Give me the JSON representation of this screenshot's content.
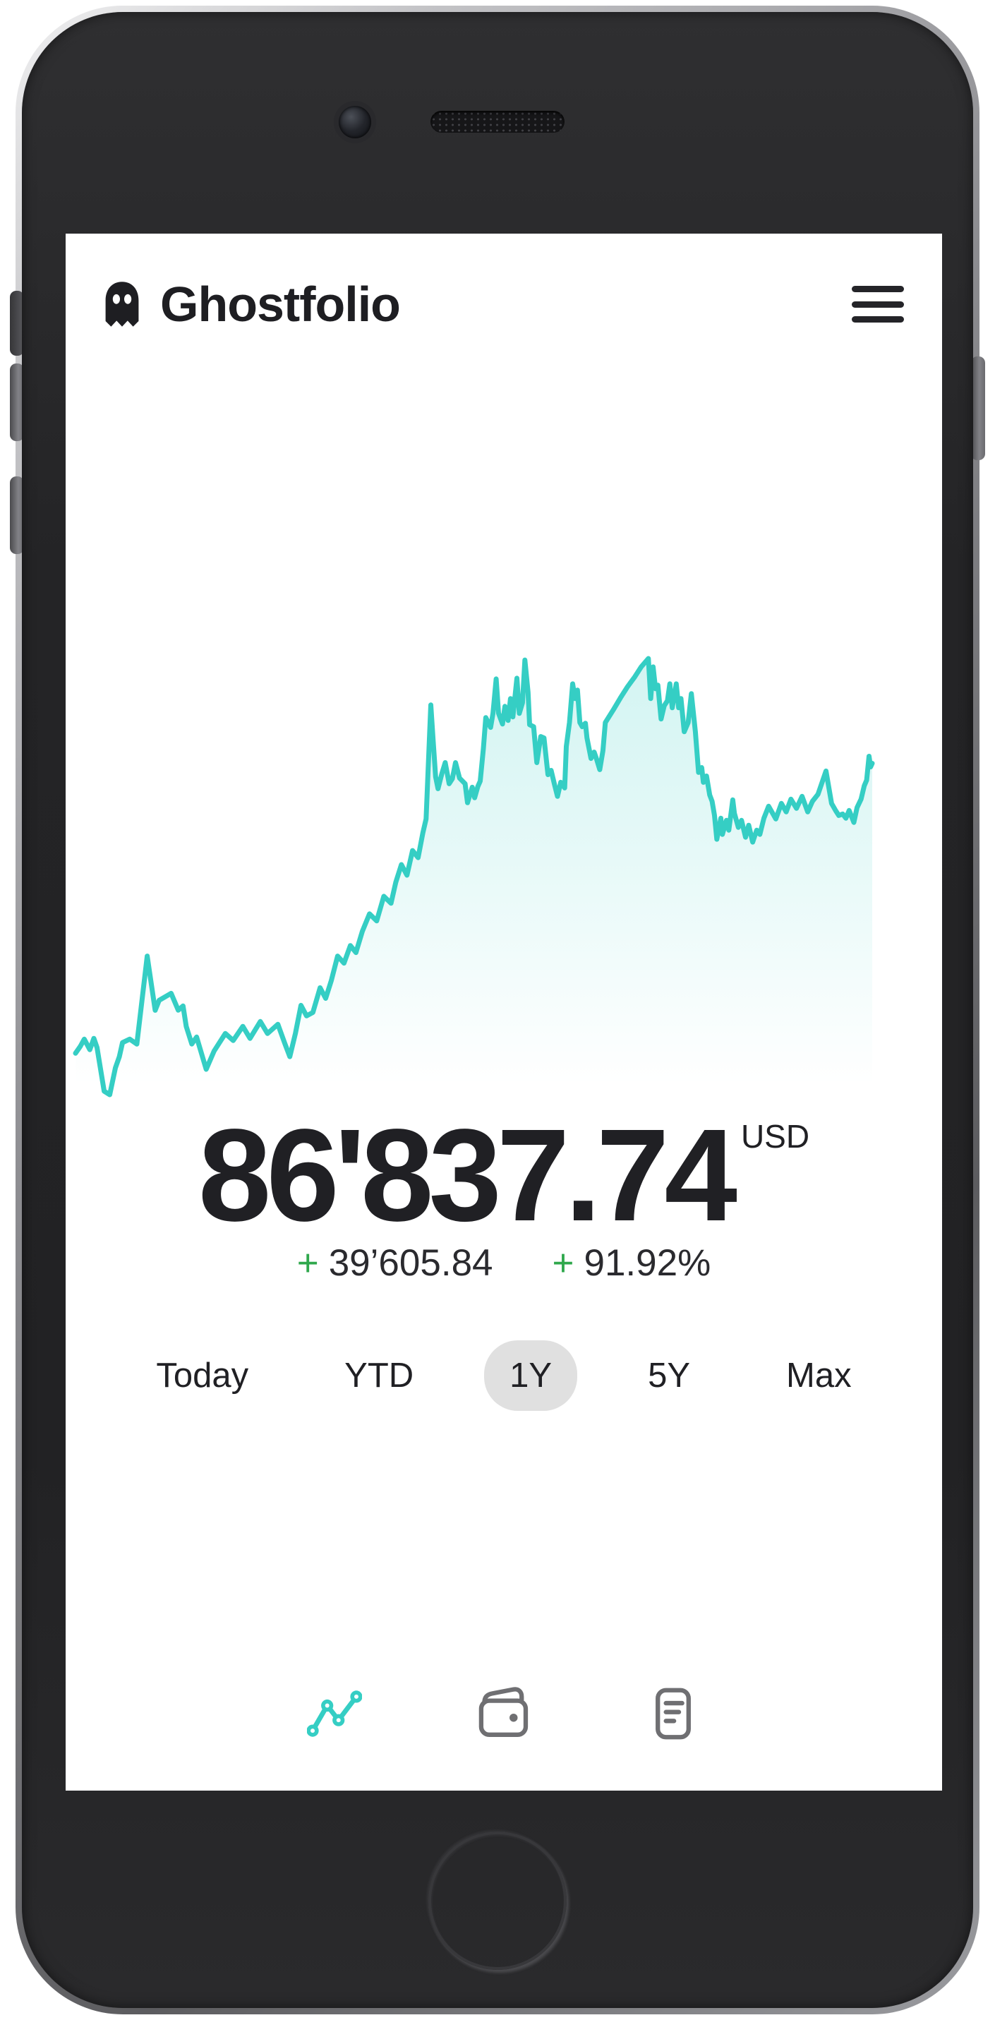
{
  "header": {
    "title": "Ghostfolio",
    "logo_icon": "ghost-icon",
    "menu_icon": "hamburger-icon"
  },
  "portfolio": {
    "value": "86'837.74",
    "currency": "USD",
    "change_sign": "+",
    "change_absolute": "39’605.84",
    "change_percent": "91.92%"
  },
  "tabs": {
    "items": [
      {
        "label": "Today",
        "active": false
      },
      {
        "label": "YTD",
        "active": false
      },
      {
        "label": "1Y",
        "active": true
      },
      {
        "label": "5Y",
        "active": false
      },
      {
        "label": "Max",
        "active": false
      }
    ]
  },
  "bottom_nav": {
    "items": [
      {
        "name": "performance",
        "icon": "line-chart-icon",
        "active": true
      },
      {
        "name": "holdings",
        "icon": "wallet-icon",
        "active": false
      },
      {
        "name": "transactions",
        "icon": "document-list-icon",
        "active": false
      }
    ]
  },
  "colors": {
    "accent_teal": "#35cec4",
    "positive_green": "#2fa84c",
    "text_dark": "#202024",
    "pill_gray": "#e0e0e0",
    "inactive_icon_gray": "#6f6f72"
  },
  "chart_data": {
    "type": "area",
    "title": "",
    "xlabel": "",
    "ylabel": "",
    "period_selected": "1Y",
    "axes_hidden": true,
    "grid": false,
    "legend": "none",
    "line_color": "#35cec4",
    "fill_style": "teal gradient fading to white at bottom",
    "x_unit": "percent of 1Y period",
    "y_unit": "USD",
    "ylim": [
      43000,
      101000
    ],
    "end_value": 86837.74,
    "series": [
      {
        "name": "Portfolio value (USD)",
        "points": [
          [
            0,
            48800
          ],
          [
            0.6,
            49700
          ],
          [
            1.1,
            50650
          ],
          [
            1.8,
            49270
          ],
          [
            2.3,
            50750
          ],
          [
            2.7,
            49550
          ],
          [
            3.6,
            43825
          ],
          [
            4.3,
            43360
          ],
          [
            5,
            46870
          ],
          [
            5.5,
            48345
          ],
          [
            5.9,
            50190
          ],
          [
            6.8,
            50650
          ],
          [
            7.7,
            50000
          ],
          [
            9,
            61550
          ],
          [
            10,
            54440
          ],
          [
            10.5,
            55740
          ],
          [
            12,
            56660
          ],
          [
            12.9,
            54450
          ],
          [
            13.5,
            55000
          ],
          [
            13.9,
            52320
          ],
          [
            14.6,
            50010
          ],
          [
            15.2,
            50930
          ],
          [
            16.4,
            46690
          ],
          [
            17.4,
            49090
          ],
          [
            18.8,
            51390
          ],
          [
            19.8,
            50470
          ],
          [
            21,
            52320
          ],
          [
            21.9,
            50750
          ],
          [
            23.2,
            52960
          ],
          [
            24.1,
            51390
          ],
          [
            25.4,
            52590
          ],
          [
            26.3,
            50010
          ],
          [
            26.9,
            48350
          ],
          [
            27.6,
            51390
          ],
          [
            28.3,
            55080
          ],
          [
            29,
            53700
          ],
          [
            29.8,
            54160
          ],
          [
            30.7,
            57390
          ],
          [
            31.4,
            56000
          ],
          [
            32.1,
            58310
          ],
          [
            32.9,
            61550
          ],
          [
            33.7,
            60620
          ],
          [
            34.5,
            62930
          ],
          [
            35.2,
            62010
          ],
          [
            36,
            64780
          ],
          [
            36.9,
            67090
          ],
          [
            37.8,
            66160
          ],
          [
            38.7,
            69390
          ],
          [
            39.6,
            68470
          ],
          [
            40.2,
            71240
          ],
          [
            40.9,
            73545
          ],
          [
            41.6,
            72160
          ],
          [
            42.3,
            75390
          ],
          [
            43,
            74470
          ],
          [
            43.6,
            77700
          ],
          [
            44,
            79545
          ],
          [
            44.6,
            94500
          ],
          [
            44.9,
            89700
          ],
          [
            45.2,
            85080
          ],
          [
            45.5,
            83515
          ],
          [
            46,
            85545
          ],
          [
            46.4,
            86930
          ],
          [
            46.9,
            84160
          ],
          [
            47.3,
            84810
          ],
          [
            47.7,
            86930
          ],
          [
            48.2,
            84900
          ],
          [
            48.9,
            84160
          ],
          [
            49.2,
            81670
          ],
          [
            49.8,
            83700
          ],
          [
            50.1,
            82320
          ],
          [
            50.5,
            83790
          ],
          [
            50.8,
            84500
          ],
          [
            51.2,
            88780
          ],
          [
            51.5,
            92840
          ],
          [
            52.1,
            91550
          ],
          [
            52.4,
            93390
          ],
          [
            52.8,
            97915
          ],
          [
            53.1,
            93390
          ],
          [
            53.6,
            92000
          ],
          [
            53.9,
            94315
          ],
          [
            54.3,
            92470
          ],
          [
            54.6,
            95330
          ],
          [
            54.9,
            92930
          ],
          [
            55.4,
            98010
          ],
          [
            55.7,
            93390
          ],
          [
            56.1,
            94775
          ],
          [
            56.4,
            100400
          ],
          [
            56.8,
            96160
          ],
          [
            57,
            91915
          ],
          [
            57.5,
            91640
          ],
          [
            57.9,
            86930
          ],
          [
            58.4,
            90345
          ],
          [
            58.8,
            90160
          ],
          [
            59.3,
            85360
          ],
          [
            59.7,
            85915
          ],
          [
            60.1,
            84160
          ],
          [
            60.5,
            82500
          ],
          [
            60.9,
            84345
          ],
          [
            61.4,
            83605
          ],
          [
            61.6,
            89055
          ],
          [
            62,
            92190
          ],
          [
            62.4,
            97270
          ],
          [
            62.7,
            95330
          ],
          [
            63,
            96440
          ],
          [
            63.3,
            92190
          ],
          [
            63.6,
            91640
          ],
          [
            64,
            92100
          ],
          [
            64.2,
            90160
          ],
          [
            64.7,
            87480
          ],
          [
            65.1,
            88315
          ],
          [
            65.4,
            87390
          ],
          [
            65.8,
            86010
          ],
          [
            66.2,
            88500
          ],
          [
            66.5,
            92190
          ],
          [
            67.5,
            93850
          ],
          [
            68.4,
            95420
          ],
          [
            69.3,
            96900
          ],
          [
            70.2,
            98190
          ],
          [
            71,
            99485
          ],
          [
            71.9,
            100590
          ],
          [
            72.2,
            95330
          ],
          [
            72.5,
            99485
          ],
          [
            72.8,
            96625
          ],
          [
            73.1,
            97085
          ],
          [
            73.5,
            92655
          ],
          [
            73.9,
            94405
          ],
          [
            74.3,
            95055
          ],
          [
            74.6,
            97270
          ],
          [
            74.9,
            94130
          ],
          [
            75.4,
            97270
          ],
          [
            75.7,
            94130
          ],
          [
            76,
            95330
          ],
          [
            76.4,
            90990
          ],
          [
            76.9,
            92190
          ],
          [
            77.3,
            95975
          ],
          [
            77.8,
            90990
          ],
          [
            78.2,
            85640
          ],
          [
            78.6,
            86285
          ],
          [
            78.8,
            84345
          ],
          [
            79.2,
            85175
          ],
          [
            79.6,
            82685
          ],
          [
            79.9,
            81855
          ],
          [
            80.2,
            80005
          ],
          [
            80.5,
            76870
          ],
          [
            81,
            79635
          ],
          [
            81.2,
            77515
          ],
          [
            81.7,
            79360
          ],
          [
            82,
            78070
          ],
          [
            82.5,
            82040
          ],
          [
            82.7,
            80285
          ],
          [
            83.2,
            78440
          ],
          [
            83.6,
            79360
          ],
          [
            84.1,
            77145
          ],
          [
            84.5,
            78715
          ],
          [
            85,
            76500
          ],
          [
            85.5,
            78070
          ],
          [
            85.9,
            77515
          ],
          [
            86.4,
            79635
          ],
          [
            87,
            81210
          ],
          [
            87.9,
            79545
          ],
          [
            88.6,
            81575
          ],
          [
            89.2,
            80470
          ],
          [
            89.8,
            82130
          ],
          [
            90.5,
            80930
          ],
          [
            91.2,
            82500
          ],
          [
            91.9,
            80470
          ],
          [
            92.5,
            81855
          ],
          [
            93.2,
            82780
          ],
          [
            94.2,
            85825
          ],
          [
            94.9,
            81575
          ],
          [
            95.4,
            80655
          ],
          [
            95.8,
            80005
          ],
          [
            96.3,
            80190
          ],
          [
            96.7,
            79635
          ],
          [
            97.1,
            80655
          ],
          [
            97.7,
            79085
          ],
          [
            98.1,
            81025
          ],
          [
            98.6,
            82130
          ],
          [
            99,
            83885
          ],
          [
            99.3,
            84625
          ],
          [
            99.6,
            87760
          ],
          [
            99.8,
            86375
          ],
          [
            100,
            86838
          ]
        ]
      }
    ]
  }
}
